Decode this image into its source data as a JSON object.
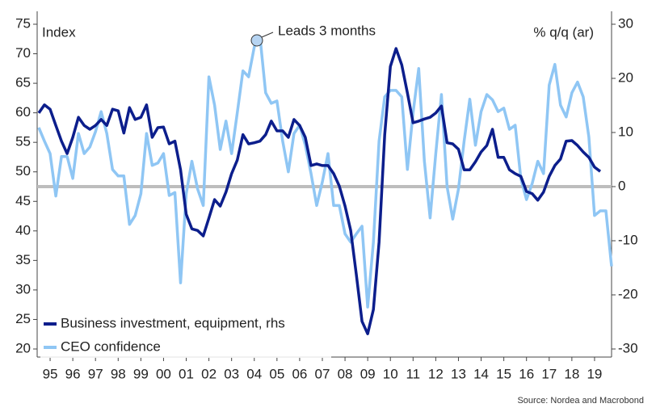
{
  "chart_data": {
    "type": "line",
    "annotation": "Leads 3 months",
    "ylabel": "Index",
    "y2label": "% q/q (ar)",
    "source": "Source: Nordea and Macrobond",
    "legend": "lower left",
    "reference_line_y2": 0,
    "x": [
      1995,
      1995.25,
      1995.5,
      1995.75,
      1996,
      1996.25,
      1996.5,
      1996.75,
      1997,
      1997.25,
      1997.5,
      1997.75,
      1998,
      1998.25,
      1998.5,
      1998.75,
      1999,
      1999.25,
      1999.5,
      1999.75,
      2000,
      2000.25,
      2000.5,
      2000.75,
      2001,
      2001.25,
      2001.5,
      2001.75,
      2002,
      2002.25,
      2002.5,
      2002.75,
      2003,
      2003.25,
      2003.5,
      2003.75,
      2004,
      2004.25,
      2004.5,
      2004.75,
      2005,
      2005.25,
      2005.5,
      2005.75,
      2006,
      2006.25,
      2006.5,
      2006.75,
      2007,
      2007.25,
      2007.5,
      2007.75,
      2008,
      2008.25,
      2008.5,
      2008.75,
      2009,
      2009.25,
      2009.5,
      2009.75,
      2010,
      2010.25,
      2010.5,
      2010.75,
      2011,
      2011.25,
      2011.5,
      2011.75,
      2012,
      2012.25,
      2012.5,
      2012.75,
      2013,
      2013.25,
      2013.5,
      2013.75,
      2014,
      2014.25,
      2014.5,
      2014.75,
      2015,
      2015.25,
      2015.5,
      2015.75,
      2016,
      2016.25,
      2016.5,
      2016.75,
      2017,
      2017.25,
      2017.5,
      2017.75,
      2018,
      2018.25,
      2018.5,
      2018.75,
      2019,
      2019.25,
      2019.5,
      2019.75,
      2020,
      2020.25
    ],
    "xlim": [
      1995,
      2020.25
    ],
    "xticks": [
      {
        "value": 1995.5,
        "label": "95"
      },
      {
        "value": 1996.5,
        "label": "96"
      },
      {
        "value": 1997.5,
        "label": "97"
      },
      {
        "value": 1998.5,
        "label": "98"
      },
      {
        "value": 1999.5,
        "label": "99"
      },
      {
        "value": 2000.5,
        "label": "00"
      },
      {
        "value": 2001.5,
        "label": "01"
      },
      {
        "value": 2002.5,
        "label": "02"
      },
      {
        "value": 2003.5,
        "label": "03"
      },
      {
        "value": 2004.5,
        "label": "04"
      },
      {
        "value": 2005.5,
        "label": "05"
      },
      {
        "value": 2006.5,
        "label": "06"
      },
      {
        "value": 2007.5,
        "label": "07"
      },
      {
        "value": 2008.5,
        "label": "08"
      },
      {
        "value": 2009.5,
        "label": "09"
      },
      {
        "value": 2010.5,
        "label": "10"
      },
      {
        "value": 2011.5,
        "label": "11"
      },
      {
        "value": 2012.5,
        "label": "12"
      },
      {
        "value": 2013.5,
        "label": "13"
      },
      {
        "value": 2014.5,
        "label": "14"
      },
      {
        "value": 2015.5,
        "label": "15"
      },
      {
        "value": 2016.5,
        "label": "16"
      },
      {
        "value": 2017.5,
        "label": "17"
      },
      {
        "value": 2018.5,
        "label": "18"
      },
      {
        "value": 2019.5,
        "label": "19"
      }
    ],
    "ylim": [
      20,
      75
    ],
    "yticks": [
      20,
      25,
      30,
      35,
      40,
      45,
      50,
      55,
      60,
      65,
      70,
      75
    ],
    "y2lim": [
      -30,
      30
    ],
    "y2ticks": [
      -30,
      -20,
      -10,
      0,
      10,
      20,
      30
    ],
    "series": [
      {
        "name": "Business investment, equipment, rhs",
        "color": "#0c1e8c",
        "axis": "y2",
        "values": [
          13.6,
          15.1,
          14.3,
          11.3,
          8.4,
          6.1,
          9.1,
          12.8,
          11.3,
          10.6,
          11.3,
          12.4,
          11.3,
          14.3,
          14.0,
          9.9,
          14.6,
          12.4,
          12.8,
          15.1,
          9.1,
          10.9,
          11.0,
          7.9,
          8.4,
          3.1,
          -5.1,
          -7.8,
          -8.1,
          -9.1,
          -5.8,
          -2.4,
          -3.6,
          -1.0,
          2.4,
          4.9,
          9.6,
          7.9,
          8.1,
          8.4,
          9.6,
          12.1,
          10.3,
          10.3,
          9.1,
          12.4,
          11.3,
          9.1,
          3.9,
          4.2,
          3.9,
          3.9,
          2.4,
          0.1,
          -3.6,
          -8.1,
          -16.3,
          -24.9,
          -27.2,
          -22.7,
          -10.3,
          9.6,
          22.2,
          25.5,
          22.5,
          17.3,
          11.8,
          12.1,
          12.5,
          12.8,
          13.6,
          14.9,
          8.1,
          7.9,
          6.9,
          3.1,
          3.1,
          4.6,
          6.4,
          7.6,
          10.6,
          5.4,
          5.4,
          3.1,
          2.4,
          1.9,
          -0.9,
          -1.3,
          -2.5,
          -1.0,
          1.9,
          3.9,
          5.1,
          8.4,
          8.5,
          7.6,
          6.4,
          5.4,
          3.6,
          2.8,
          null,
          null
        ]
      },
      {
        "name": "CEO confidence",
        "color": "#8fc6f4",
        "values": [
          57.5,
          55.2,
          53.1,
          45.9,
          52.6,
          52.6,
          48.9,
          56.5,
          53.1,
          54.2,
          56.8,
          60.2,
          56.5,
          50.4,
          49.3,
          49.3,
          41.1,
          42.6,
          46.3,
          56.5,
          51.1,
          51.5,
          53.1,
          46.0,
          46.5,
          31.2,
          46.3,
          51.8,
          47.1,
          44.3,
          66.1,
          61.3,
          53.8,
          58.6,
          53.1,
          60.0,
          67.1,
          66.1,
          71.2,
          72.9,
          63.4,
          61.6,
          62.0,
          55.2,
          50.0,
          56.5,
          57.9,
          54.5,
          49.7,
          44.3,
          48.3,
          53.1,
          44.3,
          44.3,
          39.5,
          38.1,
          39.5,
          40.8,
          27.1,
          38.1,
          55.2,
          62.7,
          63.8,
          63.8,
          62.7,
          50.4,
          60.0,
          67.5,
          51.8,
          42.2,
          53.1,
          63.1,
          47.5,
          42.0,
          47.1,
          55.2,
          62.3,
          54.5,
          60.2,
          63.1,
          62.2,
          60.2,
          60.8,
          57.2,
          57.9,
          48.9,
          45.3,
          48.0,
          51.8,
          49.7,
          64.7,
          68.2,
          61.3,
          59.3,
          63.4,
          65.2,
          62.7,
          55.9,
          42.6,
          43.4,
          43.4,
          34.0
        ]
      }
    ]
  }
}
